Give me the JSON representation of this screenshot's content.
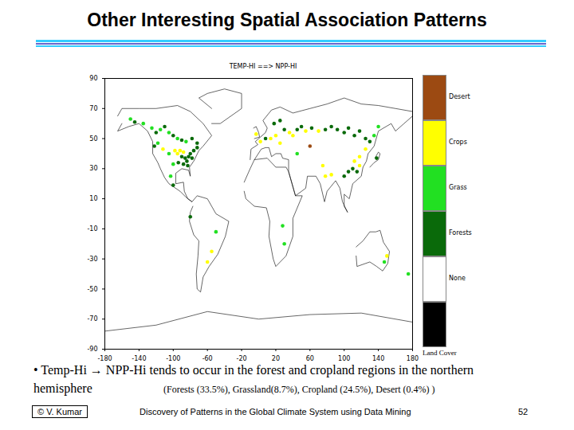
{
  "title": "Other Interesting Spatial Association Patterns",
  "bullet": [
    "• Temp-Hi → NPP-Hi tends to occur in the forest and cropland regions in the northern",
    "hemisphere"
  ],
  "note": "(Forests (33.5%), Grassland(8.7%), Cropland (24.5%), Desert (0.4%) )",
  "footer": {
    "left": "© V. Kumar",
    "center": "Discovery of Patterns in the Global Climate System using Data Mining",
    "right": "52"
  },
  "chart_data": {
    "type": "map",
    "title": "TEMP-HI ==> NPP-HI",
    "xlim": [
      -180,
      180
    ],
    "xticks": [
      -180,
      -140,
      -100,
      -60,
      -20,
      20,
      60,
      100,
      140,
      180
    ],
    "ylim": [
      -90,
      90
    ],
    "yticks": [
      -90,
      -70,
      -50,
      -30,
      -10,
      10,
      30,
      50,
      70,
      90
    ],
    "color_bar": {
      "title": "Land Cover",
      "categories": [
        "Desert",
        "Crops",
        "Grass",
        "Forests",
        "None",
        null
      ],
      "colors": [
        "#9c4a12",
        "#ffff00",
        "#22e022",
        "#0a6a0a",
        "#ffffff",
        "#000000"
      ]
    },
    "coastlines": [
      [
        [
          -165,
          65
        ],
        [
          -160,
          70
        ],
        [
          -140,
          70
        ],
        [
          -120,
          70
        ],
        [
          -95,
          72
        ],
        [
          -80,
          68
        ],
        [
          -65,
          60
        ],
        [
          -55,
          52
        ],
        [
          -65,
          45
        ],
        [
          -70,
          42
        ],
        [
          -76,
          35
        ],
        [
          -81,
          31
        ],
        [
          -80,
          25
        ],
        [
          -82,
          29
        ],
        [
          -90,
          30
        ],
        [
          -97,
          27
        ],
        [
          -97,
          20
        ],
        [
          -88,
          21
        ],
        [
          -87,
          15
        ],
        [
          -83,
          10
        ],
        [
          -78,
          8
        ],
        [
          -85,
          11
        ],
        [
          -92,
          15
        ],
        [
          -105,
          20
        ],
        [
          -110,
          24
        ],
        [
          -115,
          30
        ],
        [
          -118,
          34
        ],
        [
          -124,
          40
        ],
        [
          -124,
          48
        ],
        [
          -130,
          55
        ],
        [
          -140,
          60
        ],
        [
          -152,
          58
        ],
        [
          -165,
          55
        ],
        [
          -160,
          60
        ]
      ],
      [
        [
          -55,
          60
        ],
        [
          -45,
          60
        ],
        [
          -20,
          70
        ],
        [
          -20,
          80
        ],
        [
          -40,
          83
        ],
        [
          -60,
          80
        ],
        [
          -70,
          77
        ],
        [
          -55,
          70
        ]
      ],
      [
        [
          -78,
          8
        ],
        [
          -72,
          12
        ],
        [
          -60,
          10
        ],
        [
          -50,
          0
        ],
        [
          -35,
          -5
        ],
        [
          -39,
          -15
        ],
        [
          -48,
          -27
        ],
        [
          -58,
          -35
        ],
        [
          -65,
          -42
        ],
        [
          -68,
          -52
        ],
        [
          -72,
          -50
        ],
        [
          -73,
          -40
        ],
        [
          -71,
          -28
        ],
        [
          -70,
          -18
        ],
        [
          -76,
          -14
        ],
        [
          -81,
          -5
        ],
        [
          -80,
          1
        ],
        [
          -77,
          5
        ]
      ],
      [
        [
          -10,
          36
        ],
        [
          -9,
          43
        ],
        [
          -1,
          46
        ],
        [
          -4,
          48
        ],
        [
          2,
          51
        ],
        [
          8,
          54
        ],
        [
          10,
          57
        ],
        [
          5,
          62
        ],
        [
          15,
          69
        ],
        [
          25,
          71
        ],
        [
          40,
          67
        ],
        [
          60,
          70
        ],
        [
          80,
          73
        ],
        [
          100,
          77
        ],
        [
          120,
          73
        ],
        [
          140,
          72
        ],
        [
          160,
          70
        ],
        [
          180,
          68
        ],
        [
          180,
          65
        ],
        [
          170,
          60
        ],
        [
          160,
          55
        ],
        [
          155,
          60
        ],
        [
          140,
          55
        ],
        [
          135,
          45
        ],
        [
          128,
          40
        ],
        [
          126,
          35
        ],
        [
          122,
          31
        ],
        [
          120,
          25
        ],
        [
          110,
          20
        ],
        [
          106,
          10
        ],
        [
          100,
          13
        ],
        [
          100,
          5
        ],
        [
          104,
          1
        ],
        [
          98,
          8
        ],
        [
          95,
          17
        ],
        [
          90,
          22
        ],
        [
          80,
          15
        ],
        [
          77,
          8
        ],
        [
          72,
          20
        ],
        [
          67,
          25
        ],
        [
          57,
          25
        ],
        [
          55,
          17
        ],
        [
          43,
          12
        ],
        [
          35,
          28
        ],
        [
          35,
          36
        ],
        [
          28,
          37
        ],
        [
          26,
          40
        ],
        [
          20,
          40
        ],
        [
          15,
          38
        ],
        [
          12,
          44
        ],
        [
          8,
          44
        ],
        [
          3,
          43
        ],
        [
          -5,
          36
        ]
      ],
      [
        [
          -17,
          21
        ],
        [
          -10,
          30
        ],
        [
          -5,
          36
        ],
        [
          10,
          37
        ],
        [
          20,
          31
        ],
        [
          32,
          31
        ],
        [
          35,
          28
        ],
        [
          43,
          12
        ],
        [
          51,
          12
        ],
        [
          40,
          -3
        ],
        [
          40,
          -15
        ],
        [
          32,
          -28
        ],
        [
          20,
          -35
        ],
        [
          17,
          -30
        ],
        [
          12,
          -15
        ],
        [
          13,
          -5
        ],
        [
          9,
          4
        ],
        [
          -5,
          5
        ],
        [
          -15,
          10
        ],
        [
          -17,
          15
        ]
      ],
      [
        [
          114,
          -22
        ],
        [
          122,
          -18
        ],
        [
          130,
          -12
        ],
        [
          137,
          -12
        ],
        [
          142,
          -11
        ],
        [
          146,
          -19
        ],
        [
          153,
          -25
        ],
        [
          151,
          -33
        ],
        [
          145,
          -38
        ],
        [
          138,
          -35
        ],
        [
          130,
          -32
        ],
        [
          115,
          -35
        ],
        [
          114,
          -28
        ]
      ],
      [
        [
          -5,
          50
        ],
        [
          1,
          51
        ],
        [
          0,
          54
        ],
        [
          -3,
          58
        ],
        [
          -6,
          57
        ]
      ],
      [
        [
          130,
          31
        ],
        [
          135,
          34
        ],
        [
          140,
          36
        ],
        [
          142,
          40
        ],
        [
          140,
          41
        ],
        [
          136,
          37
        ]
      ],
      [
        [
          -180,
          -78
        ],
        [
          -120,
          -74
        ],
        [
          -60,
          -65
        ],
        [
          0,
          -70
        ],
        [
          60,
          -67
        ],
        [
          120,
          -66
        ],
        [
          180,
          -72
        ]
      ]
    ],
    "points": [
      {
        "lon": -150,
        "lat": 63,
        "class": "Grass"
      },
      {
        "lon": -145,
        "lat": 61,
        "class": "Forests"
      },
      {
        "lon": -135,
        "lat": 60,
        "class": "Grass"
      },
      {
        "lon": -125,
        "lat": 57,
        "class": "Grass"
      },
      {
        "lon": -120,
        "lat": 54,
        "class": "Forests"
      },
      {
        "lon": -115,
        "lat": 56,
        "class": "Grass"
      },
      {
        "lon": -110,
        "lat": 58,
        "class": "Forests"
      },
      {
        "lon": -105,
        "lat": 54,
        "class": "Grass"
      },
      {
        "lon": -100,
        "lat": 52,
        "class": "Forests"
      },
      {
        "lon": -95,
        "lat": 50,
        "class": "Grass"
      },
      {
        "lon": -90,
        "lat": 49,
        "class": "Forests"
      },
      {
        "lon": -85,
        "lat": 48,
        "class": "Grass"
      },
      {
        "lon": -78,
        "lat": 50,
        "class": "Forests"
      },
      {
        "lon": -72,
        "lat": 47,
        "class": "Forests"
      },
      {
        "lon": -122,
        "lat": 45,
        "class": "Forests"
      },
      {
        "lon": -118,
        "lat": 47,
        "class": "Grass"
      },
      {
        "lon": -112,
        "lat": 43,
        "class": "Crops"
      },
      {
        "lon": -105,
        "lat": 40,
        "class": "Grass"
      },
      {
        "lon": -98,
        "lat": 42,
        "class": "Crops"
      },
      {
        "lon": -95,
        "lat": 40,
        "class": "Crops"
      },
      {
        "lon": -92,
        "lat": 42,
        "class": "Crops"
      },
      {
        "lon": -88,
        "lat": 41,
        "class": "Crops"
      },
      {
        "lon": -90,
        "lat": 38,
        "class": "Forests"
      },
      {
        "lon": -86,
        "lat": 37,
        "class": "Forests"
      },
      {
        "lon": -84,
        "lat": 35,
        "class": "Forests"
      },
      {
        "lon": -82,
        "lat": 38,
        "class": "Forests"
      },
      {
        "lon": -80,
        "lat": 40,
        "class": "Forests"
      },
      {
        "lon": -78,
        "lat": 37,
        "class": "Forests"
      },
      {
        "lon": -76,
        "lat": 42,
        "class": "Forests"
      },
      {
        "lon": -72,
        "lat": 44,
        "class": "Forests"
      },
      {
        "lon": -88,
        "lat": 33,
        "class": "Forests"
      },
      {
        "lon": -94,
        "lat": 34,
        "class": "Forests"
      },
      {
        "lon": -83,
        "lat": 32,
        "class": "Forests"
      },
      {
        "lon": -100,
        "lat": 33,
        "class": "Grass"
      },
      {
        "lon": -103,
        "lat": 25,
        "class": "Grass"
      },
      {
        "lon": -100,
        "lat": 19,
        "class": "Forests"
      },
      {
        "lon": -3,
        "lat": 53,
        "class": "Crops"
      },
      {
        "lon": 2,
        "lat": 48,
        "class": "Crops"
      },
      {
        "lon": 8,
        "lat": 50,
        "class": "Forests"
      },
      {
        "lon": 14,
        "lat": 50,
        "class": "Crops"
      },
      {
        "lon": 20,
        "lat": 52,
        "class": "Crops"
      },
      {
        "lon": 25,
        "lat": 47,
        "class": "Crops"
      },
      {
        "lon": 18,
        "lat": 60,
        "class": "Forests"
      },
      {
        "lon": 25,
        "lat": 62,
        "class": "Forests"
      },
      {
        "lon": 30,
        "lat": 56,
        "class": "Forests"
      },
      {
        "lon": 36,
        "lat": 54,
        "class": "Crops"
      },
      {
        "lon": 40,
        "lat": 52,
        "class": "Crops"
      },
      {
        "lon": 45,
        "lat": 56,
        "class": "Forests"
      },
      {
        "lon": 50,
        "lat": 58,
        "class": "Forests"
      },
      {
        "lon": 55,
        "lat": 55,
        "class": "Crops"
      },
      {
        "lon": 62,
        "lat": 57,
        "class": "Forests"
      },
      {
        "lon": 70,
        "lat": 55,
        "class": "Crops"
      },
      {
        "lon": 78,
        "lat": 56,
        "class": "Forests"
      },
      {
        "lon": 85,
        "lat": 58,
        "class": "Forests"
      },
      {
        "lon": 92,
        "lat": 56,
        "class": "Forests"
      },
      {
        "lon": 100,
        "lat": 54,
        "class": "Forests"
      },
      {
        "lon": 105,
        "lat": 57,
        "class": "Forests"
      },
      {
        "lon": 112,
        "lat": 52,
        "class": "Forests"
      },
      {
        "lon": 118,
        "lat": 55,
        "class": "Forests"
      },
      {
        "lon": 125,
        "lat": 50,
        "class": "Forests"
      },
      {
        "lon": 130,
        "lat": 48,
        "class": "Forests"
      },
      {
        "lon": 135,
        "lat": 52,
        "class": "Grass"
      },
      {
        "lon": 140,
        "lat": 58,
        "class": "Grass"
      },
      {
        "lon": 125,
        "lat": 43,
        "class": "Crops"
      },
      {
        "lon": 118,
        "lat": 38,
        "class": "Crops"
      },
      {
        "lon": 112,
        "lat": 35,
        "class": "Crops"
      },
      {
        "lon": 110,
        "lat": 30,
        "class": "Forests"
      },
      {
        "lon": 115,
        "lat": 28,
        "class": "Forests"
      },
      {
        "lon": 105,
        "lat": 28,
        "class": "Forests"
      },
      {
        "lon": 118,
        "lat": 32,
        "class": "Crops"
      },
      {
        "lon": 100,
        "lat": 25,
        "class": "Forests"
      },
      {
        "lon": 138,
        "lat": 37,
        "class": "Forests"
      },
      {
        "lon": 78,
        "lat": 25,
        "class": "Crops"
      },
      {
        "lon": 85,
        "lat": 26,
        "class": "Crops"
      },
      {
        "lon": 75,
        "lat": 32,
        "class": "Crops"
      },
      {
        "lon": 45,
        "lat": 40,
        "class": "Grass"
      },
      {
        "lon": 60,
        "lat": 45,
        "class": "Desert"
      },
      {
        "lon": -50,
        "lat": -12,
        "class": "Grass"
      },
      {
        "lon": -55,
        "lat": -25,
        "class": "Crops"
      },
      {
        "lon": -60,
        "lat": -32,
        "class": "Crops"
      },
      {
        "lon": 28,
        "lat": -8,
        "class": "Grass"
      },
      {
        "lon": 30,
        "lat": -20,
        "class": "Grass"
      },
      {
        "lon": 147,
        "lat": -32,
        "class": "Grass"
      },
      {
        "lon": 150,
        "lat": -28,
        "class": "Crops"
      },
      {
        "lon": 175,
        "lat": -40,
        "class": "Grass"
      },
      {
        "lon": -80,
        "lat": -2,
        "class": "Forests"
      }
    ]
  }
}
